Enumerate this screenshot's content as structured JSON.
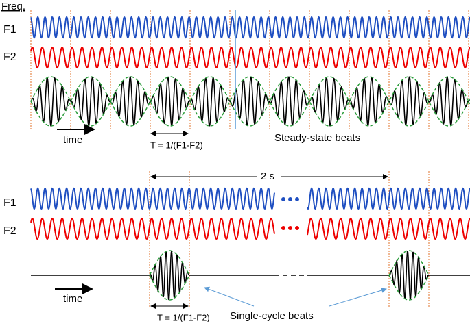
{
  "header": {
    "title": "Freq."
  },
  "steady": {
    "f1_label": "F1",
    "f2_label": "F2",
    "time_label": "time",
    "period_label": "T = 1/(F1-F2)",
    "caption": "Steady-state beats"
  },
  "single": {
    "f1_label": "F1",
    "f2_label": "F2",
    "duration_label": "2 s",
    "time_label": "time",
    "period_label": "T = 1/(F1-F2)",
    "caption": "Single-cycle beats"
  }
}
